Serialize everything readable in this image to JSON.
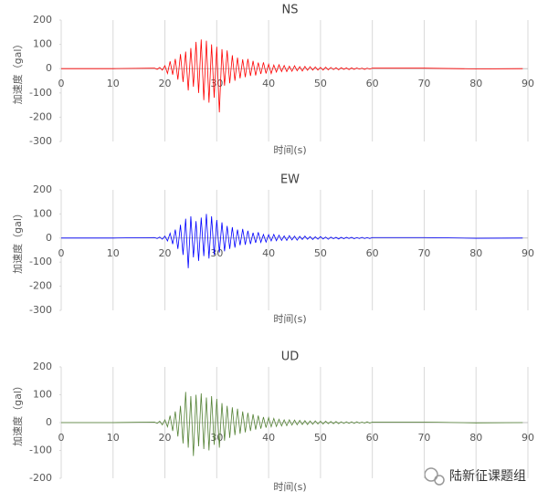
{
  "chart_data": [
    {
      "type": "line",
      "title": "NS",
      "xlabel": "时间(s)",
      "ylabel": "加速度（gal）",
      "color": "#ff0000",
      "grid": "x",
      "xlim": [
        0,
        90
      ],
      "xticks": [
        0,
        10,
        20,
        30,
        40,
        50,
        60,
        70,
        80,
        90
      ],
      "ylim": [
        -300,
        200
      ],
      "yticks": [
        200,
        100,
        0,
        -100,
        -200,
        -300
      ],
      "x": [
        0,
        10,
        18,
        18.5,
        19,
        19.5,
        20,
        20.5,
        21,
        21.5,
        22,
        22.5,
        23,
        23.5,
        24,
        24.5,
        25,
        25.5,
        26,
        26.5,
        27,
        27.5,
        28,
        28.5,
        29,
        29.5,
        30,
        30.5,
        31,
        31.5,
        32,
        32.5,
        33,
        33.5,
        34,
        34.5,
        35,
        35.5,
        36,
        36.5,
        37,
        37.5,
        38,
        38.5,
        39,
        39.5,
        40,
        40.5,
        41,
        41.5,
        42,
        42.5,
        43,
        43.5,
        44,
        44.5,
        45,
        45.5,
        46,
        46.5,
        47,
        47.5,
        48,
        48.5,
        49,
        49.5,
        50,
        50.5,
        51,
        51.5,
        52,
        52.5,
        53,
        53.5,
        54,
        54.5,
        55,
        55.5,
        56,
        56.5,
        57,
        57.5,
        58,
        58.5,
        59,
        59.5,
        60,
        70,
        80,
        89
      ],
      "values": [
        0,
        0,
        2,
        -3,
        5,
        -6,
        12,
        -20,
        30,
        -25,
        40,
        -45,
        60,
        -55,
        70,
        -90,
        85,
        -75,
        110,
        -100,
        120,
        -130,
        115,
        -140,
        100,
        -120,
        90,
        -180,
        80,
        -70,
        75,
        -60,
        55,
        -50,
        45,
        -40,
        38,
        -35,
        40,
        -30,
        32,
        -28,
        25,
        -22,
        26,
        -20,
        18,
        -20,
        15,
        -14,
        16,
        -12,
        13,
        -12,
        10,
        -11,
        12,
        -9,
        8,
        -10,
        9,
        -7,
        8,
        -6,
        7,
        -6,
        5,
        -6,
        6,
        -5,
        5,
        -4,
        4,
        -5,
        4,
        -3,
        3,
        -4,
        3,
        -3,
        3,
        -2,
        2,
        -3,
        2,
        -2,
        2,
        2,
        -1,
        0
      ]
    },
    {
      "type": "line",
      "title": "EW",
      "xlabel": "时间(s)",
      "ylabel": "加速度（gal）",
      "color": "#0000ff",
      "grid": "x",
      "xlim": [
        0,
        90
      ],
      "xticks": [
        0,
        10,
        20,
        30,
        40,
        50,
        60,
        70,
        80,
        90
      ],
      "ylim": [
        -300,
        200
      ],
      "yticks": [
        200,
        100,
        0,
        -100,
        -200,
        -300
      ],
      "x": [
        0,
        10,
        18,
        18.5,
        19,
        19.5,
        20,
        20.5,
        21,
        21.5,
        22,
        22.5,
        23,
        23.5,
        24,
        24.5,
        25,
        25.5,
        26,
        26.5,
        27,
        27.5,
        28,
        28.5,
        29,
        29.5,
        30,
        30.5,
        31,
        31.5,
        32,
        32.5,
        33,
        33.5,
        34,
        34.5,
        35,
        35.5,
        36,
        36.5,
        37,
        37.5,
        38,
        38.5,
        39,
        39.5,
        40,
        40.5,
        41,
        41.5,
        42,
        42.5,
        43,
        43.5,
        44,
        44.5,
        45,
        45.5,
        46,
        46.5,
        47,
        47.5,
        48,
        48.5,
        49,
        49.5,
        50,
        50.5,
        51,
        51.5,
        52,
        52.5,
        53,
        53.5,
        54,
        54.5,
        55,
        55.5,
        56,
        56.5,
        57,
        57.5,
        58,
        58.5,
        59,
        59.5,
        60,
        70,
        80,
        89
      ],
      "values": [
        0,
        0,
        2,
        -2,
        4,
        -5,
        8,
        -12,
        20,
        -25,
        35,
        -45,
        55,
        -70,
        80,
        -125,
        90,
        -80,
        70,
        -95,
        85,
        -75,
        100,
        -85,
        90,
        -70,
        75,
        -60,
        65,
        -55,
        50,
        -45,
        45,
        -40,
        35,
        -30,
        38,
        -28,
        30,
        -25,
        22,
        -20,
        24,
        -18,
        15,
        -17,
        14,
        -12,
        15,
        -11,
        12,
        -10,
        9,
        -10,
        10,
        -8,
        8,
        -9,
        7,
        -6,
        8,
        -5,
        6,
        -6,
        5,
        -5,
        6,
        -4,
        4,
        -5,
        4,
        -3,
        3,
        -4,
        3,
        -3,
        3,
        -2,
        3,
        -3,
        2,
        -2,
        3,
        -2,
        2,
        -2,
        2,
        2,
        -1,
        0
      ]
    },
    {
      "type": "line",
      "title": "UD",
      "xlabel": "时间(s)",
      "ylabel": "加速度（gal）",
      "color": "#548235",
      "grid": "x",
      "xlim": [
        0,
        90
      ],
      "xticks": [
        0,
        10,
        20,
        30,
        40,
        50,
        60,
        70,
        80,
        90
      ],
      "ylim": [
        -200,
        200
      ],
      "yticks": [
        200,
        100,
        0,
        -100,
        -200
      ],
      "x": [
        0,
        10,
        18,
        18.5,
        19,
        19.5,
        20,
        20.5,
        21,
        21.5,
        22,
        22.5,
        23,
        23.5,
        24,
        24.5,
        25,
        25.5,
        26,
        26.5,
        27,
        27.5,
        28,
        28.5,
        29,
        29.5,
        30,
        30.5,
        31,
        31.5,
        32,
        32.5,
        33,
        33.5,
        34,
        34.5,
        35,
        35.5,
        36,
        36.5,
        37,
        37.5,
        38,
        38.5,
        39,
        39.5,
        40,
        40.5,
        41,
        41.5,
        42,
        42.5,
        43,
        43.5,
        44,
        44.5,
        45,
        45.5,
        46,
        46.5,
        47,
        47.5,
        48,
        48.5,
        49,
        49.5,
        50,
        50.5,
        51,
        51.5,
        52,
        52.5,
        53,
        53.5,
        54,
        54.5,
        55,
        55.5,
        56,
        56.5,
        57,
        57.5,
        58,
        58.5,
        59,
        59.5,
        60,
        70,
        80,
        89
      ],
      "values": [
        0,
        0,
        2,
        -3,
        5,
        -8,
        10,
        -15,
        25,
        -30,
        40,
        -50,
        60,
        -75,
        110,
        -90,
        95,
        -120,
        100,
        -85,
        105,
        -95,
        90,
        -100,
        95,
        -80,
        85,
        -90,
        70,
        -65,
        60,
        -55,
        55,
        -45,
        50,
        -40,
        40,
        -35,
        35,
        -30,
        30,
        -25,
        25,
        -22,
        20,
        -18,
        18,
        -15,
        15,
        -14,
        12,
        -12,
        10,
        -11,
        10,
        -9,
        9,
        -8,
        8,
        -7,
        7,
        -7,
        6,
        -6,
        6,
        -5,
        5,
        -5,
        5,
        -4,
        4,
        -4,
        4,
        -4,
        3,
        -3,
        3,
        -3,
        3,
        -3,
        3,
        -2,
        2,
        -2,
        3,
        -2,
        2,
        2,
        -1,
        0
      ]
    }
  ],
  "watermark": "陆新征课题组"
}
